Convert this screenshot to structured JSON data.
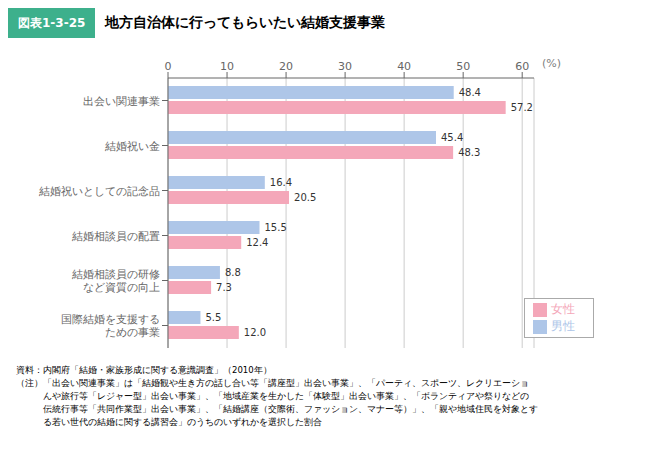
{
  "chart_data": {
    "type": "bar",
    "orientation": "horizontal",
    "title": "地方自治体に行ってもらいたい結婚支援事業",
    "subtitle": "図表1-3-25",
    "categories": [
      "出会い関連事業",
      "結婚祝い金",
      "結婚祝いとしての記念品",
      "結婚相談員の配置",
      "結婚相談員の研修\nなど資質の向上",
      "国際結婚を支援する\nための事業"
    ],
    "series": [
      {
        "name": "男性",
        "color": "#aec6e8",
        "values": [
          48.4,
          45.4,
          16.4,
          15.5,
          8.8,
          5.5
        ],
        "value_labels": [
          "48.4",
          "45.4",
          "16.4",
          "15.5",
          "8.8",
          "5.5"
        ]
      },
      {
        "name": "女性",
        "color": "#f4a7b9",
        "values": [
          57.2,
          48.3,
          20.5,
          12.4,
          7.3,
          12.0
        ],
        "value_labels": [
          "57.2",
          "48.3",
          "20.5",
          "12.4",
          "7.3",
          "12.0"
        ]
      }
    ],
    "xlabel": "(%)",
    "xlim": [
      0,
      62
    ],
    "xticks": [
      0,
      10,
      20,
      30,
      40,
      50,
      60
    ],
    "grid": true,
    "legend": "lower right",
    "data_labels": true,
    "title_box_color": "#3db08c",
    "footnotes": [
      "資料：内閣府「結婚・家族形成に関する意識調査」（2010年）",
      "（注）「出会い関連事業」は「結婚観や生き方の話し合い等「講座型」出会い事業」、「パーティ、スポーツ、レクリエーショ",
      "　　　んや旅行等「レジャー型」出会い事業」、「地域産業を生かした「体験型」出会い事業」、「ボランティアや祭りなどの",
      "　　　伝統行事等「共同作業型」出会い事業」、「結婚講座（交際術、ファッション、マナー等）」、「親や地域住民を対象とす",
      "　　　る若い世代の結婚に関する講習会」のうちのいずれかを選択した割合"
    ]
  }
}
